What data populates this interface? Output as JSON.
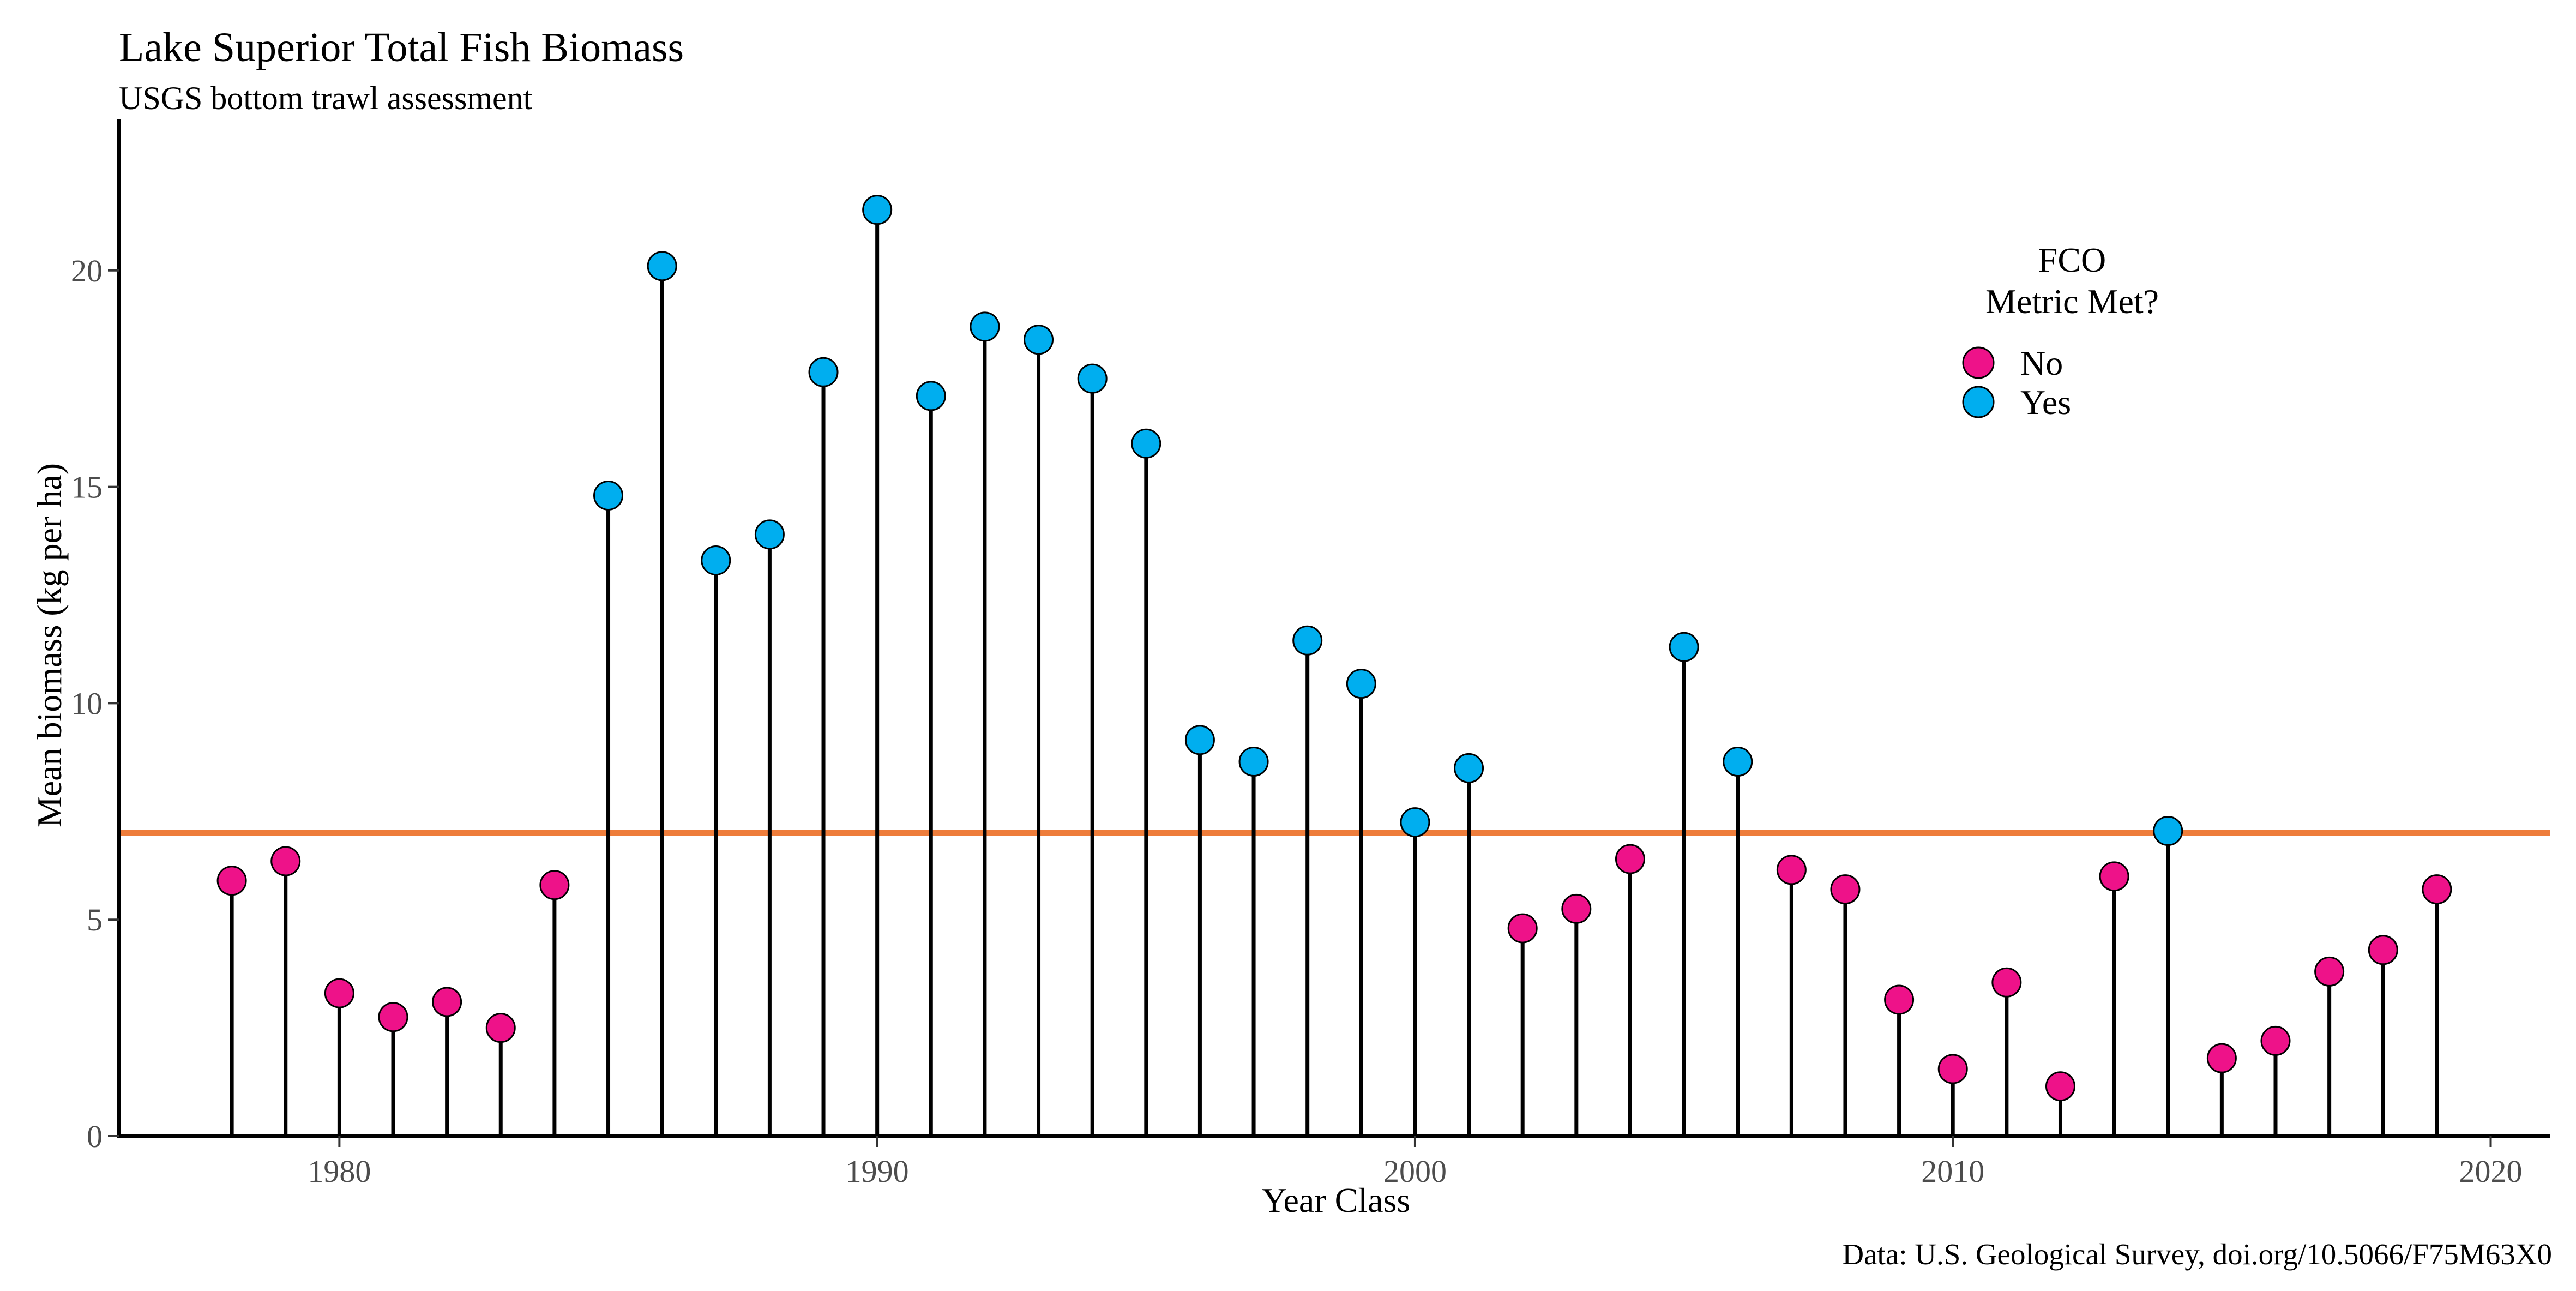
{
  "chart_data": {
    "type": "lollipop",
    "title": "Lake Superior Total Fish Biomass",
    "subtitle": "USGS bottom trawl assessment",
    "xlabel": "Year Class",
    "ylabel": "Mean biomass (kg per ha)",
    "caption": "Data: U.S. Geological Survey, doi.org/10.5066/F75M63X0",
    "xlim": [
      1975.9,
      2021.1
    ],
    "ylim": [
      0,
      23.5
    ],
    "x_ticks": [
      1980,
      1990,
      2000,
      2010,
      2020
    ],
    "y_ticks": [
      0,
      5,
      10,
      15,
      20
    ],
    "grid": false,
    "threshold": {
      "value": 7.0,
      "color": "#ee7d3b"
    },
    "legend": {
      "position": "top-right",
      "title_lines": [
        "FCO",
        "Metric Met?"
      ],
      "entries": [
        {
          "label": "No",
          "color": "#ee1289"
        },
        {
          "label": "Yes",
          "color": "#00aeef"
        }
      ]
    },
    "colors": {
      "No": "#ee1289",
      "Yes": "#00aeef"
    },
    "points": [
      {
        "x": 1978,
        "y": 5.9,
        "met": "No"
      },
      {
        "x": 1979,
        "y": 6.35,
        "met": "No"
      },
      {
        "x": 1980,
        "y": 3.3,
        "met": "No"
      },
      {
        "x": 1981,
        "y": 2.75,
        "met": "No"
      },
      {
        "x": 1982,
        "y": 3.1,
        "met": "No"
      },
      {
        "x": 1983,
        "y": 2.5,
        "met": "No"
      },
      {
        "x": 1984,
        "y": 5.8,
        "met": "No"
      },
      {
        "x": 1985,
        "y": 14.8,
        "met": "Yes"
      },
      {
        "x": 1986,
        "y": 20.1,
        "met": "Yes"
      },
      {
        "x": 1987,
        "y": 13.3,
        "met": "Yes"
      },
      {
        "x": 1988,
        "y": 13.9,
        "met": "Yes"
      },
      {
        "x": 1989,
        "y": 17.65,
        "met": "Yes"
      },
      {
        "x": 1990,
        "y": 21.4,
        "met": "Yes"
      },
      {
        "x": 1991,
        "y": 17.1,
        "met": "Yes"
      },
      {
        "x": 1992,
        "y": 18.7,
        "met": "Yes"
      },
      {
        "x": 1993,
        "y": 18.4,
        "met": "Yes"
      },
      {
        "x": 1994,
        "y": 17.5,
        "met": "Yes"
      },
      {
        "x": 1995,
        "y": 16.0,
        "met": "Yes"
      },
      {
        "x": 1996,
        "y": 9.15,
        "met": "Yes"
      },
      {
        "x": 1997,
        "y": 8.65,
        "met": "Yes"
      },
      {
        "x": 1998,
        "y": 11.45,
        "met": "Yes"
      },
      {
        "x": 1999,
        "y": 10.45,
        "met": "Yes"
      },
      {
        "x": 2000,
        "y": 7.25,
        "met": "Yes"
      },
      {
        "x": 2001,
        "y": 8.5,
        "met": "Yes"
      },
      {
        "x": 2002,
        "y": 4.8,
        "met": "No"
      },
      {
        "x": 2003,
        "y": 5.25,
        "met": "No"
      },
      {
        "x": 2004,
        "y": 6.4,
        "met": "No"
      },
      {
        "x": 2005,
        "y": 11.3,
        "met": "Yes"
      },
      {
        "x": 2006,
        "y": 8.65,
        "met": "Yes"
      },
      {
        "x": 2007,
        "y": 6.15,
        "met": "No"
      },
      {
        "x": 2008,
        "y": 5.7,
        "met": "No"
      },
      {
        "x": 2009,
        "y": 3.15,
        "met": "No"
      },
      {
        "x": 2010,
        "y": 1.55,
        "met": "No"
      },
      {
        "x": 2011,
        "y": 3.55,
        "met": "No"
      },
      {
        "x": 2012,
        "y": 1.15,
        "met": "No"
      },
      {
        "x": 2013,
        "y": 6.0,
        "met": "No"
      },
      {
        "x": 2014,
        "y": 7.05,
        "met": "Yes"
      },
      {
        "x": 2015,
        "y": 1.8,
        "met": "No"
      },
      {
        "x": 2016,
        "y": 2.2,
        "met": "No"
      },
      {
        "x": 2017,
        "y": 3.8,
        "met": "No"
      },
      {
        "x": 2018,
        "y": 4.3,
        "met": "No"
      },
      {
        "x": 2019,
        "y": 5.7,
        "met": "No"
      }
    ]
  }
}
